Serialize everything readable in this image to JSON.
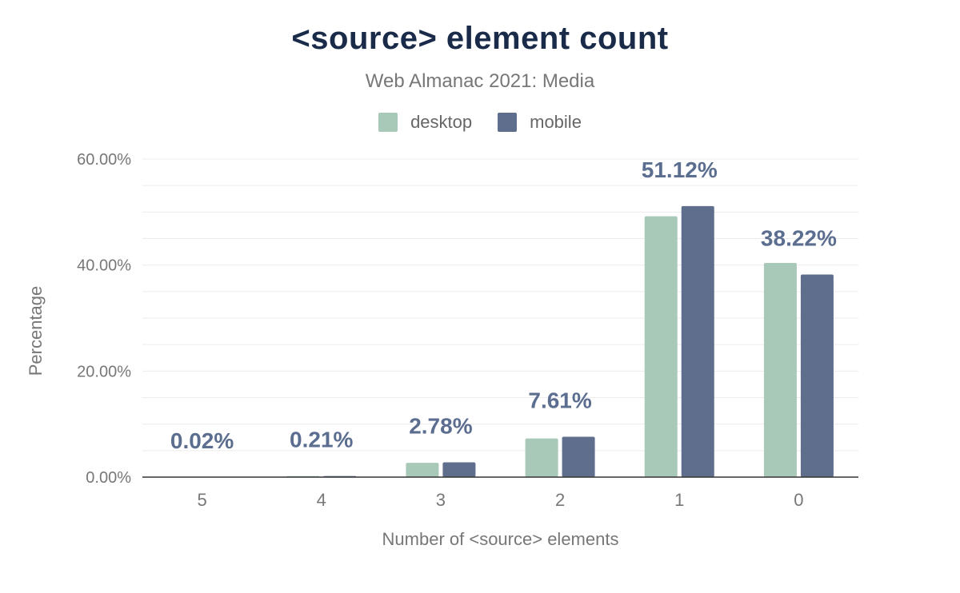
{
  "chart_data": {
    "type": "bar",
    "title": "<source> element count",
    "subtitle": "Web Almanac 2021: Media",
    "xlabel": "Number of <source> elements",
    "ylabel": "Percentage",
    "categories": [
      "5",
      "4",
      "3",
      "2",
      "1",
      "0"
    ],
    "series": [
      {
        "name": "desktop",
        "color": "#a8c8b8",
        "values": [
          0.03,
          0.2,
          2.7,
          7.3,
          49.2,
          40.4
        ]
      },
      {
        "name": "mobile",
        "color": "#5f6e8c",
        "values": [
          0.02,
          0.21,
          2.78,
          7.61,
          51.12,
          38.22
        ]
      }
    ],
    "data_labels": [
      "0.02%",
      "0.21%",
      "2.78%",
      "7.61%",
      "51.12%",
      "38.22%"
    ],
    "ylim": [
      0,
      60
    ],
    "yticks": [
      "0.00%",
      "20.00%",
      "40.00%",
      "60.00%"
    ],
    "legend_position": "top",
    "grid": true
  }
}
